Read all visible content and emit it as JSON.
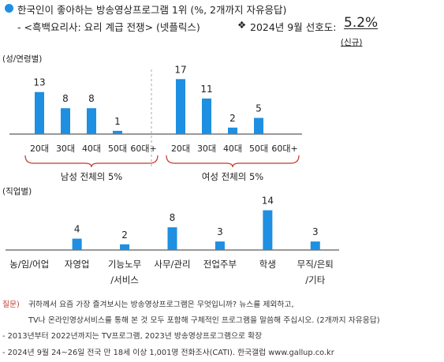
{
  "header": {
    "bullet_color": "#1e8fe1",
    "title": "한국인이 좋아하는 방송영상프로그램 1위 (%, 2개까지 자유응답)",
    "subtitle": "- <흑백요리사: 요리 계급 전쟁> (넷플릭스)",
    "pref_symbol": "❖",
    "pref_label": "2024년 9월 선호도:",
    "pref_value": "5.2%",
    "new_label": "(신규)"
  },
  "colors": {
    "bar": "#1e8fe1",
    "bracket": "#c0392b",
    "axis": "#333333"
  },
  "chart_data": [
    {
      "type": "bar",
      "section_label": "(성/연령별)",
      "groups": [
        {
          "categories": [
            "20대",
            "30대",
            "40대",
            "50대",
            "60대+"
          ],
          "values": [
            13,
            8,
            8,
            1,
            0
          ],
          "data_labels": [
            "13",
            "8",
            "8",
            "1",
            ""
          ],
          "group_note": "남성 전체의 5%"
        },
        {
          "categories": [
            "20대",
            "30대",
            "40대",
            "50대",
            "60대+"
          ],
          "values": [
            17,
            11,
            2,
            5,
            0
          ],
          "data_labels": [
            "17",
            "11",
            "2",
            "5",
            ""
          ],
          "group_note": "여성 전체의 5%"
        }
      ]
    },
    {
      "type": "bar",
      "section_label": "(직업별)",
      "categories": [
        "농/임/어업",
        "자영업",
        "기능노무/서비스",
        "사무/관리",
        "전업주부",
        "학생",
        "무직/은퇴/기타"
      ],
      "category_lines": [
        [
          "농/임/어업"
        ],
        [
          "자영업"
        ],
        [
          "기능노무",
          "/서비스"
        ],
        [
          "사무/관리"
        ],
        [
          "전업주부"
        ],
        [
          "학생"
        ],
        [
          "무직/은퇴",
          "/기타"
        ]
      ],
      "values": [
        0,
        4,
        2,
        8,
        3,
        14,
        3
      ],
      "data_labels": [
        "",
        "4",
        "2",
        "8",
        "3",
        "14",
        "3"
      ]
    }
  ],
  "footer": {
    "question_label": "질문)",
    "question_line1": "귀하께서 요즘 가장 즐겨보시는 방송영상프로그램은 무엇입니까? 뉴스를 제외하고,",
    "question_line2": "TV나 온라인영상서비스를 통해 본 것 모두 포함해 구체적인 프로그램을 말씀해 주십시오. (2개까지 자유응답)",
    "note1": "- 2013년부터 2022년까지는 TV프로그램, 2023년 방송영상프로그램으로 확장",
    "note2": "- 2024년 9월 24~26일 전국 만 18세 이상 1,001명 전화조사(CATI). 한국갤럽 www.gallup.co.kr"
  }
}
